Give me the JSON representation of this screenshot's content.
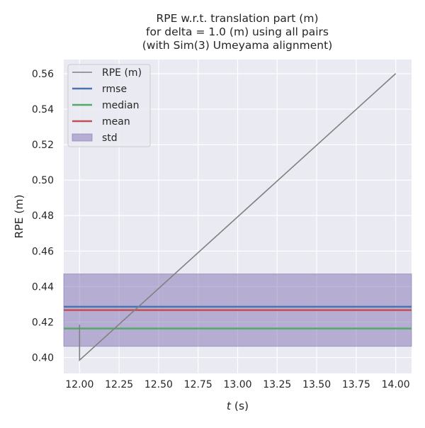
{
  "chart_data": {
    "type": "line",
    "title_lines": [
      "RPE w.r.t. translation part (m)",
      "for delta = 1.0 (m) using all pairs",
      "(with Sim(3) Umeyama alignment)"
    ],
    "xlabel_italic": "t",
    "xlabel_rest": " (s)",
    "ylabel": "RPE (m)",
    "xlim": [
      11.9,
      14.1
    ],
    "ylim": [
      0.391,
      0.568
    ],
    "xticks": [
      12.0,
      12.25,
      12.5,
      12.75,
      13.0,
      13.25,
      13.5,
      13.75,
      14.0
    ],
    "xtick_labels": [
      "12.00",
      "12.25",
      "12.50",
      "12.75",
      "13.00",
      "13.25",
      "13.50",
      "13.75",
      "14.00"
    ],
    "yticks": [
      0.4,
      0.42,
      0.44,
      0.46,
      0.48,
      0.5,
      0.52,
      0.54,
      0.56
    ],
    "ytick_labels": [
      "0.40",
      "0.42",
      "0.44",
      "0.46",
      "0.48",
      "0.50",
      "0.52",
      "0.54",
      "0.56"
    ],
    "grid": true,
    "legend_position": "top-left",
    "series": [
      {
        "name": "RPE (m)",
        "color": "#808080",
        "x": [
          12.0,
          12.0,
          14.0
        ],
        "y": [
          0.4185,
          0.3985,
          0.5601
        ]
      }
    ],
    "stats": {
      "rmse": 0.4286,
      "median": 0.4163,
      "mean": 0.4267,
      "std": 0.0204
    },
    "legend": [
      {
        "label": "RPE (m)",
        "kind": "line",
        "color": "#808080"
      },
      {
        "label": "rmse",
        "kind": "line",
        "color": "#4c72b0"
      },
      {
        "label": "median",
        "kind": "line",
        "color": "#55a868"
      },
      {
        "label": "mean",
        "kind": "line",
        "color": "#c44e52"
      },
      {
        "label": "std",
        "kind": "patch",
        "color": "#8172b2"
      }
    ],
    "colors": {
      "background": "#eaeaf2",
      "grid": "#ffffff",
      "rmse": "#4c72b0",
      "median": "#55a868",
      "mean": "#c44e52",
      "std": "#8172b2"
    }
  }
}
